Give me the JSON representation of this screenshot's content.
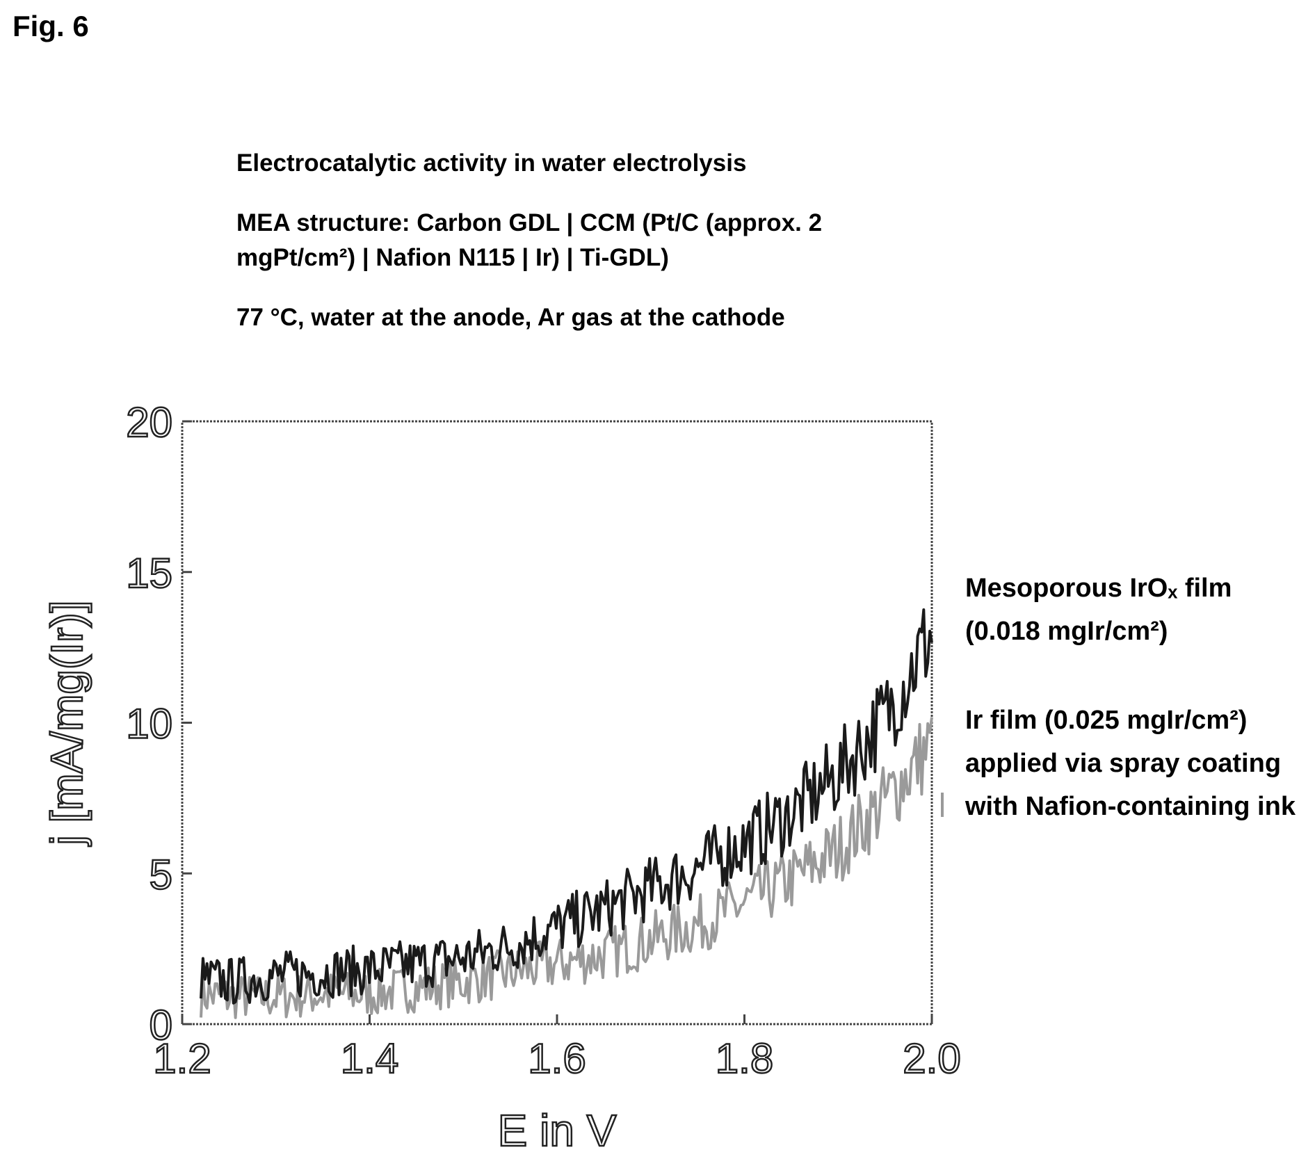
{
  "figure_label": "Fig. 6",
  "captions": {
    "line1": "Electrocatalytic activity in water electrolysis",
    "line2": "MEA structure: Carbon GDL | CCM (Pt/C (approx. 2 mgPt/cm²) | Nafion N115 | Ir) | Ti-GDL)",
    "line3": "77 °C, water at the anode, Ar gas at the cathode"
  },
  "chart_data": {
    "type": "line",
    "title": "",
    "xlabel": "E in V",
    "ylabel": "j [mA/mg(Ir)]",
    "xlim": [
      1.2,
      2.0
    ],
    "ylim": [
      0,
      20
    ],
    "xticks": [
      1.2,
      1.4,
      1.6,
      1.8,
      2.0
    ],
    "xtick_labels": [
      "1.2",
      "1.4",
      "1.6",
      "1.8",
      "2.0"
    ],
    "yticks": [
      0,
      5,
      10,
      15,
      20
    ],
    "ytick_labels": [
      "0",
      "5",
      "10",
      "15",
      "20"
    ],
    "grid": false,
    "legend_placement": "right, outside",
    "series": [
      {
        "name": "Mesoporous IrOx film (0.018 mgIr/cm²)",
        "color": "#1a1a1a",
        "x": [
          1.22,
          1.25,
          1.3,
          1.35,
          1.4,
          1.45,
          1.5,
          1.55,
          1.6,
          1.65,
          1.7,
          1.75,
          1.8,
          1.85,
          1.9,
          1.95,
          2.0
        ],
        "y": [
          1.5,
          1.4,
          1.6,
          1.7,
          1.8,
          2.0,
          2.2,
          2.6,
          3.2,
          3.8,
          4.5,
          5.2,
          6.0,
          7.0,
          8.3,
          10.2,
          13.0
        ]
      },
      {
        "name": "Ir film (0.025 mgIr/cm²) applied via spray coating with Nafion-containing ink",
        "color": "#9a9a9a",
        "x": [
          1.22,
          1.25,
          1.3,
          1.35,
          1.4,
          1.45,
          1.5,
          1.55,
          1.6,
          1.65,
          1.7,
          1.75,
          1.8,
          1.85,
          1.9,
          1.95,
          2.0
        ],
        "y": [
          1.0,
          0.9,
          0.9,
          1.0,
          1.0,
          1.2,
          1.4,
          1.7,
          2.0,
          2.3,
          2.8,
          3.3,
          4.0,
          4.8,
          5.8,
          7.4,
          9.3
        ]
      }
    ]
  },
  "legend": {
    "series1": "Mesoporous IrOₓ film (0.018 mgIr/cm²)",
    "series2": "Ir film (0.025 mgIr/cm²) applied via spray coating with Nafion-containing ink"
  }
}
